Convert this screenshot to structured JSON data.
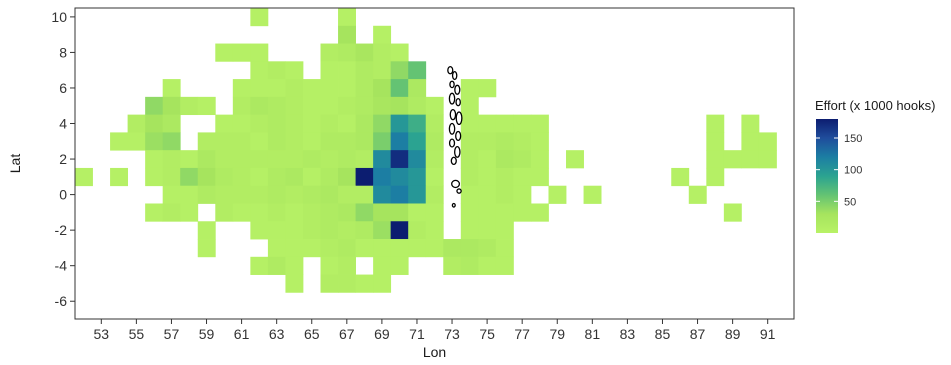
{
  "chart_data": {
    "type": "heatmap",
    "title": "",
    "xlabel": "Lon",
    "ylabel": "Lat",
    "xlim": [
      51.5,
      92.5
    ],
    "ylim": [
      -7,
      10.5
    ],
    "x_ticks": [
      53,
      55,
      57,
      59,
      61,
      63,
      65,
      67,
      69,
      71,
      73,
      75,
      77,
      79,
      81,
      83,
      85,
      87,
      89,
      91
    ],
    "y_ticks": [
      -6,
      -4,
      -2,
      0,
      2,
      4,
      6,
      8,
      10
    ],
    "cell_size": 1,
    "legend": {
      "title": "Effort (x 1000 hooks)",
      "placement": "right",
      "min": 0,
      "max": 180,
      "ticks": [
        50,
        100,
        150
      ]
    },
    "colors": {
      "scale": [
        "#b8f266",
        "#a6e45e",
        "#64c373",
        "#2ba391",
        "#1c7ea3",
        "#1f4d9c",
        "#0c1d70"
      ],
      "outline": "#000000",
      "panel_border": "#333333"
    },
    "land_outline": "Maldives islands (black outline) near Lon 73, Lat 0 to 7",
    "cells": [
      [
        62,
        10,
        5
      ],
      [
        67,
        10,
        5
      ],
      [
        67,
        9,
        30
      ],
      [
        69,
        9,
        5
      ],
      [
        60,
        8,
        5
      ],
      [
        61,
        8,
        5
      ],
      [
        62,
        8,
        5
      ],
      [
        66,
        8,
        10
      ],
      [
        67,
        8,
        15
      ],
      [
        68,
        8,
        25
      ],
      [
        69,
        8,
        10
      ],
      [
        70,
        8,
        5
      ],
      [
        62,
        7,
        5
      ],
      [
        63,
        7,
        10
      ],
      [
        64,
        7,
        5
      ],
      [
        66,
        7,
        5
      ],
      [
        67,
        7,
        5
      ],
      [
        68,
        7,
        15
      ],
      [
        69,
        7,
        10
      ],
      [
        70,
        7,
        40
      ],
      [
        71,
        7,
        60
      ],
      [
        57,
        6,
        5
      ],
      [
        61,
        6,
        5
      ],
      [
        62,
        6,
        5
      ],
      [
        63,
        6,
        5
      ],
      [
        64,
        6,
        10
      ],
      [
        65,
        6,
        5
      ],
      [
        66,
        6,
        5
      ],
      [
        67,
        6,
        5
      ],
      [
        68,
        6,
        15
      ],
      [
        69,
        6,
        30
      ],
      [
        70,
        6,
        60
      ],
      [
        71,
        6,
        20
      ],
      [
        74,
        6,
        5
      ],
      [
        75,
        6,
        5
      ],
      [
        56,
        5,
        40
      ],
      [
        57,
        5,
        30
      ],
      [
        58,
        5,
        10
      ],
      [
        59,
        5,
        5
      ],
      [
        61,
        5,
        10
      ],
      [
        62,
        5,
        20
      ],
      [
        63,
        5,
        15
      ],
      [
        64,
        5,
        10
      ],
      [
        65,
        5,
        5
      ],
      [
        66,
        5,
        5
      ],
      [
        67,
        5,
        10
      ],
      [
        68,
        5,
        15
      ],
      [
        69,
        5,
        25
      ],
      [
        70,
        5,
        30
      ],
      [
        71,
        5,
        15
      ],
      [
        72,
        5,
        5
      ],
      [
        74,
        5,
        5
      ],
      [
        55,
        4,
        10
      ],
      [
        56,
        4,
        30
      ],
      [
        57,
        4,
        20
      ],
      [
        60,
        4,
        5
      ],
      [
        61,
        4,
        5
      ],
      [
        62,
        4,
        10
      ],
      [
        63,
        4,
        15
      ],
      [
        64,
        4,
        10
      ],
      [
        65,
        4,
        5
      ],
      [
        66,
        4,
        10
      ],
      [
        67,
        4,
        5
      ],
      [
        68,
        4,
        20
      ],
      [
        69,
        4,
        40
      ],
      [
        70,
        4,
        100
      ],
      [
        71,
        4,
        80
      ],
      [
        72,
        4,
        10
      ],
      [
        74,
        4,
        5
      ],
      [
        75,
        4,
        5
      ],
      [
        76,
        4,
        5
      ],
      [
        77,
        4,
        5
      ],
      [
        78,
        4,
        5
      ],
      [
        88,
        4,
        5
      ],
      [
        90,
        4,
        5
      ],
      [
        54,
        3,
        5
      ],
      [
        55,
        3,
        5
      ],
      [
        56,
        3,
        35
      ],
      [
        57,
        3,
        40
      ],
      [
        59,
        3,
        10
      ],
      [
        60,
        3,
        10
      ],
      [
        61,
        3,
        10
      ],
      [
        62,
        3,
        5
      ],
      [
        63,
        3,
        15
      ],
      [
        64,
        3,
        10
      ],
      [
        65,
        3,
        5
      ],
      [
        66,
        3,
        15
      ],
      [
        67,
        3,
        15
      ],
      [
        68,
        3,
        20
      ],
      [
        69,
        3,
        50
      ],
      [
        70,
        3,
        120
      ],
      [
        71,
        3,
        90
      ],
      [
        72,
        3,
        15
      ],
      [
        74,
        3,
        10
      ],
      [
        75,
        3,
        10
      ],
      [
        76,
        3,
        15
      ],
      [
        77,
        3,
        10
      ],
      [
        78,
        3,
        5
      ],
      [
        88,
        3,
        5
      ],
      [
        90,
        3,
        5
      ],
      [
        91,
        3,
        5
      ],
      [
        56,
        2,
        5
      ],
      [
        57,
        2,
        10
      ],
      [
        58,
        2,
        5
      ],
      [
        59,
        2,
        20
      ],
      [
        60,
        2,
        10
      ],
      [
        61,
        2,
        10
      ],
      [
        62,
        2,
        10
      ],
      [
        63,
        2,
        10
      ],
      [
        64,
        2,
        10
      ],
      [
        65,
        2,
        15
      ],
      [
        66,
        2,
        10
      ],
      [
        67,
        2,
        15
      ],
      [
        68,
        2,
        10
      ],
      [
        69,
        2,
        110
      ],
      [
        70,
        2,
        170
      ],
      [
        71,
        2,
        110
      ],
      [
        72,
        2,
        10
      ],
      [
        74,
        2,
        10
      ],
      [
        75,
        2,
        5
      ],
      [
        76,
        2,
        20
      ],
      [
        77,
        2,
        15
      ],
      [
        78,
        2,
        5
      ],
      [
        80,
        2,
        5
      ],
      [
        88,
        2,
        5
      ],
      [
        89,
        2,
        5
      ],
      [
        90,
        2,
        5
      ],
      [
        91,
        2,
        5
      ],
      [
        52,
        1,
        5
      ],
      [
        54,
        1,
        5
      ],
      [
        56,
        1,
        5
      ],
      [
        57,
        1,
        10
      ],
      [
        58,
        1,
        40
      ],
      [
        59,
        1,
        30
      ],
      [
        60,
        1,
        15
      ],
      [
        61,
        1,
        10
      ],
      [
        62,
        1,
        5
      ],
      [
        63,
        1,
        15
      ],
      [
        64,
        1,
        20
      ],
      [
        65,
        1,
        5
      ],
      [
        66,
        1,
        15
      ],
      [
        67,
        1,
        30
      ],
      [
        68,
        1,
        180
      ],
      [
        69,
        1,
        120
      ],
      [
        70,
        1,
        110
      ],
      [
        71,
        1,
        100
      ],
      [
        72,
        1,
        5
      ],
      [
        74,
        1,
        10
      ],
      [
        75,
        1,
        5
      ],
      [
        76,
        1,
        10
      ],
      [
        77,
        1,
        5
      ],
      [
        78,
        1,
        5
      ],
      [
        86,
        1,
        5
      ],
      [
        88,
        1,
        5
      ],
      [
        57,
        0,
        5
      ],
      [
        58,
        0,
        5
      ],
      [
        59,
        0,
        15
      ],
      [
        60,
        0,
        10
      ],
      [
        61,
        0,
        10
      ],
      [
        62,
        0,
        10
      ],
      [
        63,
        0,
        15
      ],
      [
        64,
        0,
        10
      ],
      [
        65,
        0,
        15
      ],
      [
        66,
        0,
        20
      ],
      [
        67,
        0,
        10
      ],
      [
        68,
        0,
        10
      ],
      [
        69,
        0,
        110
      ],
      [
        70,
        0,
        120
      ],
      [
        71,
        0,
        100
      ],
      [
        72,
        0,
        10
      ],
      [
        74,
        0,
        5
      ],
      [
        75,
        0,
        5
      ],
      [
        76,
        0,
        10
      ],
      [
        77,
        0,
        5
      ],
      [
        79,
        0,
        5
      ],
      [
        81,
        0,
        5
      ],
      [
        87,
        0,
        5
      ],
      [
        56,
        -1,
        5
      ],
      [
        57,
        -1,
        10
      ],
      [
        58,
        -1,
        5
      ],
      [
        60,
        -1,
        10
      ],
      [
        61,
        -1,
        5
      ],
      [
        62,
        -1,
        5
      ],
      [
        63,
        -1,
        10
      ],
      [
        64,
        -1,
        5
      ],
      [
        65,
        -1,
        10
      ],
      [
        66,
        -1,
        15
      ],
      [
        67,
        -1,
        20
      ],
      [
        68,
        -1,
        40
      ],
      [
        69,
        -1,
        30
      ],
      [
        70,
        -1,
        30
      ],
      [
        71,
        -1,
        5
      ],
      [
        72,
        -1,
        5
      ],
      [
        74,
        -1,
        5
      ],
      [
        75,
        -1,
        5
      ],
      [
        76,
        -1,
        5
      ],
      [
        77,
        -1,
        5
      ],
      [
        78,
        -1,
        5
      ],
      [
        89,
        -1,
        5
      ],
      [
        59,
        -2,
        5
      ],
      [
        62,
        -2,
        5
      ],
      [
        63,
        -2,
        5
      ],
      [
        64,
        -2,
        5
      ],
      [
        65,
        -2,
        10
      ],
      [
        66,
        -2,
        15
      ],
      [
        67,
        -2,
        10
      ],
      [
        68,
        -2,
        15
      ],
      [
        69,
        -2,
        35
      ],
      [
        70,
        -2,
        180
      ],
      [
        71,
        -2,
        10
      ],
      [
        72,
        -2,
        5
      ],
      [
        74,
        -2,
        5
      ],
      [
        75,
        -2,
        5
      ],
      [
        76,
        -2,
        5
      ],
      [
        59,
        -3,
        5
      ],
      [
        63,
        -3,
        5
      ],
      [
        64,
        -3,
        5
      ],
      [
        65,
        -3,
        5
      ],
      [
        66,
        -3,
        10
      ],
      [
        67,
        -3,
        15
      ],
      [
        68,
        -3,
        5
      ],
      [
        69,
        -3,
        5
      ],
      [
        70,
        -3,
        5
      ],
      [
        71,
        -3,
        5
      ],
      [
        72,
        -3,
        5
      ],
      [
        73,
        -3,
        20
      ],
      [
        74,
        -3,
        20
      ],
      [
        75,
        -3,
        15
      ],
      [
        76,
        -3,
        5
      ],
      [
        62,
        -4,
        5
      ],
      [
        63,
        -4,
        15
      ],
      [
        64,
        -4,
        5
      ],
      [
        66,
        -4,
        5
      ],
      [
        67,
        -4,
        10
      ],
      [
        69,
        -4,
        5
      ],
      [
        70,
        -4,
        5
      ],
      [
        73,
        -4,
        10
      ],
      [
        74,
        -4,
        15
      ],
      [
        75,
        -4,
        5
      ],
      [
        76,
        -4,
        5
      ],
      [
        64,
        -5,
        5
      ],
      [
        66,
        -5,
        10
      ],
      [
        67,
        -5,
        10
      ],
      [
        68,
        -5,
        5
      ],
      [
        69,
        -5,
        5
      ]
    ]
  }
}
